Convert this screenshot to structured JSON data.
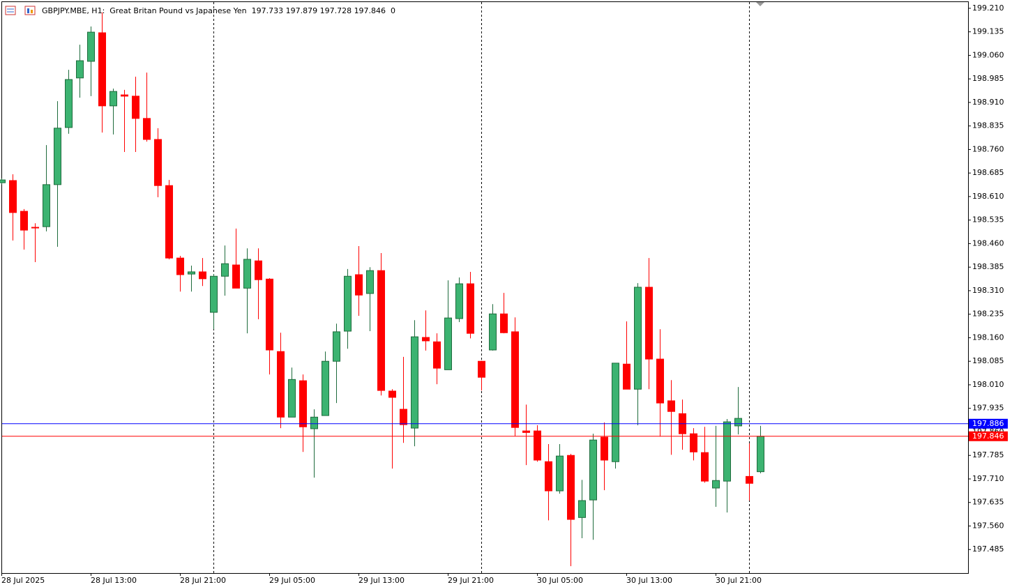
{
  "chart_data": {
    "type": "candlestick",
    "title": "GBPJPY.MBE, H1:  Great Britan Pound vs Japanese Yen  197.733 197.879 197.728 197.846  0",
    "categories": [
      "28 Jul 2025",
      null,
      null,
      null,
      null,
      null,
      null,
      null,
      "28 Jul 13:00",
      null,
      null,
      null,
      null,
      null,
      null,
      null,
      "28 Jul 21:00",
      null,
      null,
      null,
      null,
      null,
      null,
      null,
      "29 Jul 05:00",
      null,
      null,
      null,
      null,
      null,
      null,
      null,
      "29 Jul 13:00",
      null,
      null,
      null,
      null,
      null,
      null,
      null,
      "29 Jul 21:00",
      null,
      null,
      null,
      null,
      null,
      null,
      null,
      "30 Jul 05:00",
      null,
      null,
      null,
      null,
      null,
      null,
      null,
      "30 Jul 13:00",
      null,
      null,
      null,
      null,
      null,
      null,
      null,
      "30 Jul 21:00",
      null,
      null,
      null,
      null
    ],
    "open": [
      198.654,
      198.661,
      198.563,
      198.512,
      198.514,
      198.648,
      198.83,
      198.988,
      199.041,
      199.132,
      198.899,
      198.934,
      198.93,
      198.859,
      198.792,
      198.645,
      198.414,
      198.363,
      198.37,
      198.241,
      198.356,
      198.392,
      198.318,
      198.405,
      198.347,
      198.116,
      197.907,
      198.023,
      197.87,
      197.912,
      198.085,
      198.181,
      198.361,
      198.301,
      198.374,
      197.99,
      197.932,
      197.872,
      198.161,
      198.147,
      198.058,
      198.221,
      198.332,
      198.085,
      198.121,
      198.236,
      198.179,
      197.863,
      197.863,
      197.765,
      197.672,
      197.785,
      197.587,
      197.643,
      197.843,
      197.765,
      198.076,
      197.996,
      198.321,
      198.092,
      197.959,
      197.918,
      197.854,
      197.794,
      197.681,
      197.703,
      197.879,
      197.718,
      197.733
    ],
    "high": [
      198.668,
      198.681,
      198.57,
      198.525,
      198.774,
      198.914,
      199.014,
      199.094,
      199.152,
      199.197,
      198.954,
      198.95,
      198.992,
      199.005,
      198.828,
      198.663,
      198.421,
      198.39,
      198.414,
      198.363,
      198.454,
      198.508,
      198.445,
      198.445,
      198.35,
      198.176,
      198.065,
      198.043,
      197.932,
      198.116,
      198.205,
      198.379,
      198.452,
      198.385,
      198.43,
      197.996,
      198.099,
      198.216,
      198.247,
      198.174,
      198.343,
      198.352,
      198.37,
      198.087,
      198.267,
      198.303,
      198.225,
      197.947,
      197.881,
      197.821,
      197.821,
      197.79,
      197.707,
      197.854,
      197.89,
      198.079,
      198.212,
      198.334,
      198.414,
      198.187,
      198.025,
      197.963,
      197.872,
      197.876,
      197.879,
      197.901,
      198.003,
      197.823,
      197.879
    ],
    "low": [
      198.649,
      198.47,
      198.441,
      198.401,
      198.499,
      198.45,
      198.81,
      198.925,
      198.93,
      198.814,
      198.808,
      198.752,
      198.752,
      198.785,
      198.608,
      198.41,
      198.307,
      198.307,
      198.325,
      198.187,
      198.294,
      198.318,
      198.174,
      198.219,
      198.043,
      197.872,
      197.907,
      197.796,
      197.714,
      197.912,
      197.952,
      198.125,
      198.23,
      198.181,
      197.976,
      197.743,
      197.825,
      197.814,
      198.119,
      198.012,
      198.058,
      198.21,
      198.158,
      197.992,
      198.119,
      198.174,
      197.847,
      197.754,
      197.765,
      197.578,
      197.663,
      197.432,
      197.521,
      197.516,
      197.674,
      197.743,
      197.996,
      197.881,
      197.996,
      197.845,
      197.787,
      197.803,
      197.769,
      197.698,
      197.621,
      197.603,
      197.852,
      197.641,
      197.728
    ],
    "close": [
      198.663,
      198.559,
      198.503,
      198.51,
      198.648,
      198.828,
      198.983,
      199.043,
      199.134,
      198.899,
      198.945,
      198.93,
      198.859,
      198.792,
      198.645,
      198.414,
      198.361,
      198.37,
      198.348,
      198.356,
      198.396,
      198.318,
      198.41,
      198.345,
      198.121,
      197.907,
      198.027,
      197.876,
      197.907,
      198.085,
      198.179,
      198.356,
      198.296,
      198.374,
      197.992,
      197.97,
      197.883,
      198.163,
      198.15,
      198.063,
      198.223,
      198.332,
      198.174,
      198.034,
      198.236,
      198.176,
      197.874,
      197.858,
      197.77,
      197.672,
      197.783,
      197.581,
      197.641,
      197.834,
      197.77,
      198.079,
      197.996,
      198.321,
      198.092,
      197.952,
      197.925,
      197.854,
      197.796,
      197.703,
      197.705,
      197.892,
      197.903,
      197.696,
      197.846
    ],
    "up_color": "#3cb371",
    "down_color": "#ff0000",
    "ylim": [
      197.41,
      199.232
    ],
    "yticks": [
      {
        "value": 199.21,
        "label": "199.210"
      },
      199.135,
      {
        "value": 199.06,
        "label": "199.060"
      },
      198.985,
      {
        "value": 198.91,
        "label": "198.910"
      },
      198.835,
      {
        "value": 198.76,
        "label": "198.760"
      },
      198.685,
      {
        "value": 198.61,
        "label": "198.610"
      },
      198.535,
      {
        "value": 198.46,
        "label": "198.460"
      },
      198.385,
      {
        "value": 198.31,
        "label": "198.310"
      },
      198.235,
      {
        "value": 198.16,
        "label": "198.160"
      },
      198.085,
      {
        "value": 198.01,
        "label": "198.010"
      },
      197.935,
      {
        "value": 197.86,
        "label": "197.860"
      },
      197.785,
      {
        "value": 197.71,
        "label": "197.710"
      },
      197.635,
      {
        "value": 197.56,
        "label": "197.560"
      },
      197.485
    ],
    "price_lines": [
      {
        "value": 197.886,
        "color": "#0000ff"
      },
      {
        "value": 197.846,
        "color": "#ff0000"
      }
    ],
    "grid": false
  }
}
